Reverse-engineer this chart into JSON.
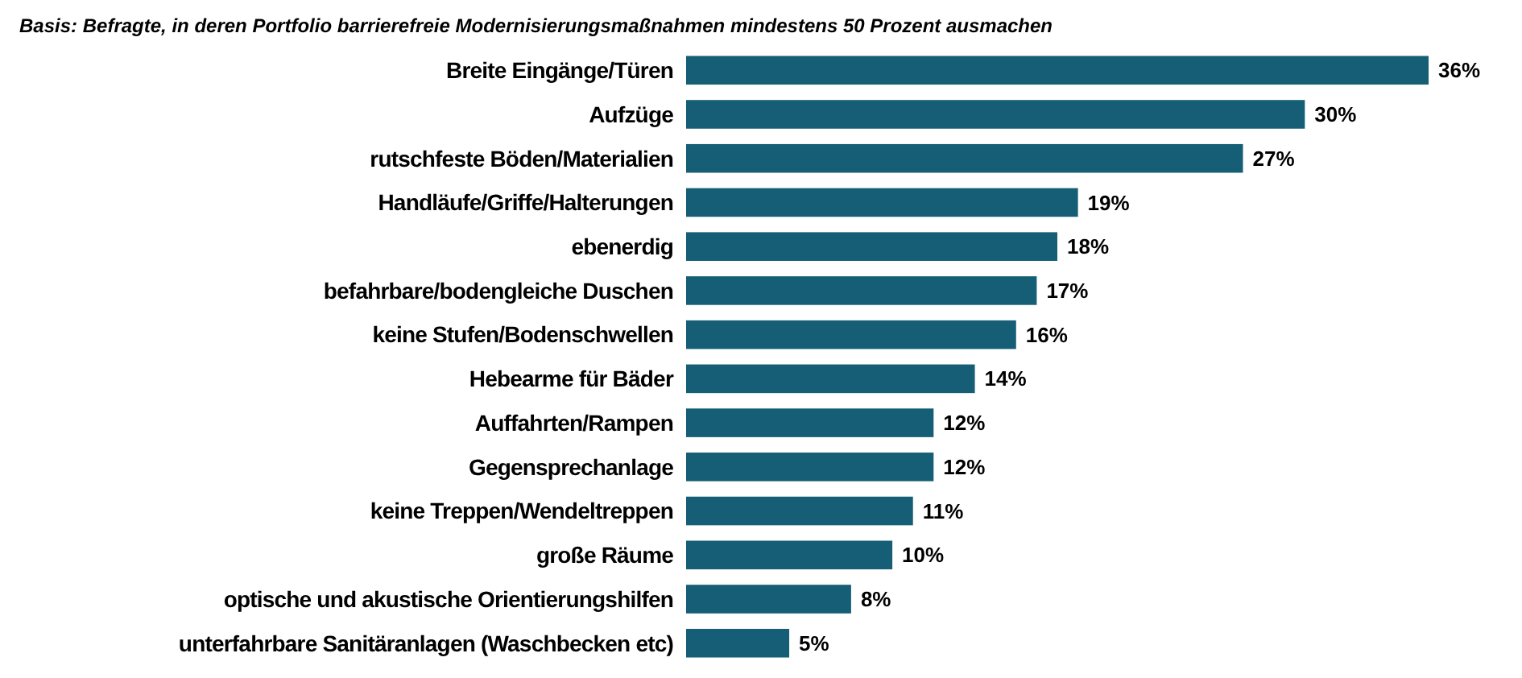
{
  "chart_data": {
    "type": "bar",
    "orientation": "horizontal",
    "subtitle": "Basis: Befragte, in deren Portfolio barrierefreie Modernisierungsmaßnahmen mindestens 50 Prozent ausmachen",
    "categories": [
      "Breite Eingänge/Türen",
      "Aufzüge",
      "rutschfeste Böden/Materialien",
      "Handläufe/Griffe/Halterungen",
      "ebenerdig",
      "befahrbare/bodengleiche Duschen",
      "keine Stufen/Bodenschwellen",
      "Hebearme für Bäder",
      "Auffahrten/Rampen",
      "Gegensprechanlage",
      "keine Treppen/Wendeltreppen",
      "große Räume",
      "optische und akustische Orientierungshilfen",
      "unterfahrbare Sanitäranlagen (Waschbecken etc)"
    ],
    "values": [
      36,
      30,
      27,
      19,
      18,
      17,
      16,
      14,
      12,
      12,
      11,
      10,
      8,
      5
    ],
    "value_labels": [
      "36%",
      "30%",
      "27%",
      "19%",
      "18%",
      "17%",
      "16%",
      "14%",
      "12%",
      "12%",
      "11%",
      "10%",
      "8%",
      "5%"
    ],
    "color": "#155e75"
  }
}
